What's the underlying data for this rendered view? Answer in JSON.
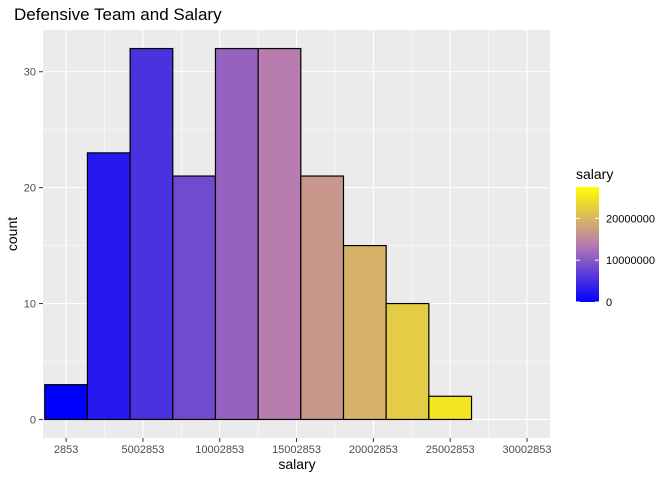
{
  "chart_data": {
    "type": "histogram",
    "title": "Defensive Team and Salary",
    "xlabel": "salary",
    "ylabel": "count",
    "x_breaks": [
      2853,
      5002853,
      10002853,
      15002853,
      20002853,
      25002853,
      30002853
    ],
    "y_breaks": [
      0,
      10,
      20,
      30
    ],
    "xlim": [
      -1500000,
      31500000
    ],
    "ylim": [
      -1.6,
      33.6
    ],
    "bin_width": 2777777,
    "bins": [
      {
        "x_start": -1386036,
        "x_end": 1391741,
        "count": 3
      },
      {
        "x_start": 1391741,
        "x_end": 4169518,
        "count": 23
      },
      {
        "x_start": 4169518,
        "x_end": 6947295,
        "count": 32
      },
      {
        "x_start": 6947295,
        "x_end": 9725072,
        "count": 21
      },
      {
        "x_start": 9725072,
        "x_end": 12502849,
        "count": 32
      },
      {
        "x_start": 12502849,
        "x_end": 15280626,
        "count": 32
      },
      {
        "x_start": 15280626,
        "x_end": 18058403,
        "count": 21
      },
      {
        "x_start": 18058403,
        "x_end": 20836180,
        "count": 15
      },
      {
        "x_start": 20836180,
        "x_end": 23613957,
        "count": 10
      },
      {
        "x_start": 23613957,
        "x_end": 26391734,
        "count": 2
      }
    ],
    "fill_gradient": {
      "low": "#0000ff",
      "mid": "#b87bb0",
      "high": "#ffff00"
    },
    "grid": true,
    "panel_background": "#ebebeb",
    "grid_color": "#ffffff",
    "bar_outline": "#000000",
    "legend": {
      "title": "salary",
      "position": "right",
      "range": [
        0,
        27500000
      ],
      "breaks": [
        0,
        10000000,
        20000000
      ],
      "labels": [
        "0",
        "10000000",
        "20000000"
      ]
    }
  }
}
